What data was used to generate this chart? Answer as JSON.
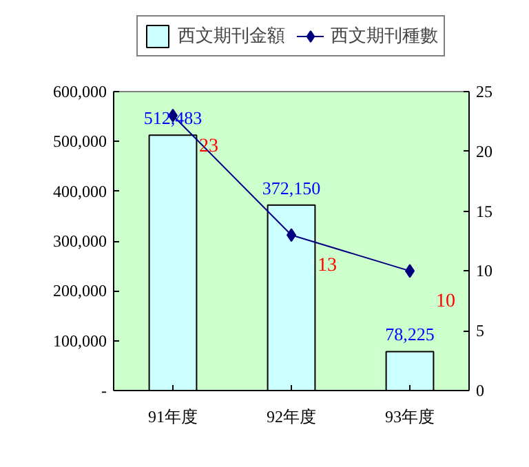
{
  "chart_data": {
    "type": "bar",
    "categories": [
      "91年度",
      "92年度",
      "93年度"
    ],
    "series": [
      {
        "name": "西文期刊金額",
        "color": "#ccffff",
        "values": [
          512483,
          372150,
          78225
        ],
        "value_labels": [
          "512,483",
          "372,150",
          "78,225"
        ]
      },
      {
        "name": "西文期刊種數",
        "type": "line",
        "axis": "y2",
        "color": "#000080",
        "values": [
          23,
          13,
          10
        ],
        "value_labels": [
          "23",
          "13",
          "10"
        ]
      }
    ],
    "ylim": [
      0,
      600000
    ],
    "yticks": [
      {
        "value": 0,
        "label": "-"
      },
      {
        "value": 100000,
        "label": "100,000"
      },
      {
        "value": 200000,
        "label": "200,000"
      },
      {
        "value": 300000,
        "label": "300,000"
      },
      {
        "value": 400000,
        "label": "400,000"
      },
      {
        "value": 500000,
        "label": "500,000"
      },
      {
        "value": 600000,
        "label": "600,000"
      }
    ],
    "y2lim": [
      0,
      25
    ],
    "y2ticks": [
      0,
      5,
      10,
      15,
      20,
      25
    ],
    "legend": "top",
    "grid": false,
    "marker": "diamond",
    "line_style": "solid"
  }
}
